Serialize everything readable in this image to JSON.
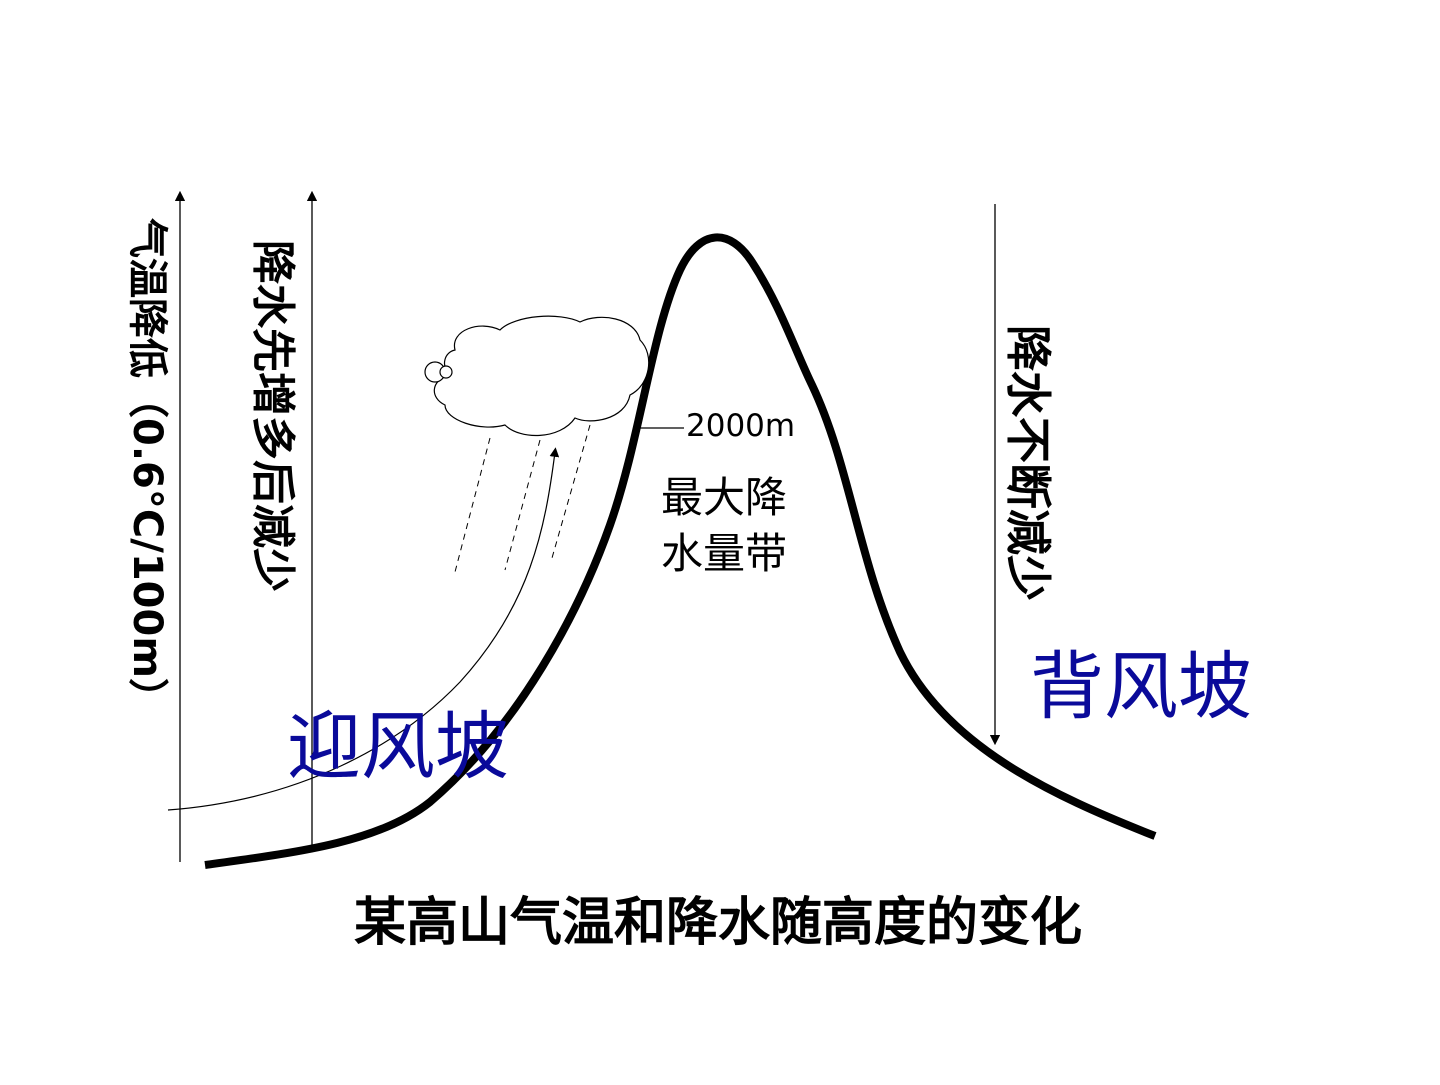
{
  "diagram": {
    "title": "某高山气温和降水随高度的变化",
    "left_axis_label": "气温降低（0.6°C/100m）",
    "windward_precip_label": "降水先增多后减少",
    "leeward_precip_label": "降水不断减少",
    "altitude_marker": "2000m",
    "max_precip_zone": [
      "最大降",
      "水量带"
    ],
    "windward_slope": "迎风坡",
    "leeward_slope": "背风坡"
  }
}
